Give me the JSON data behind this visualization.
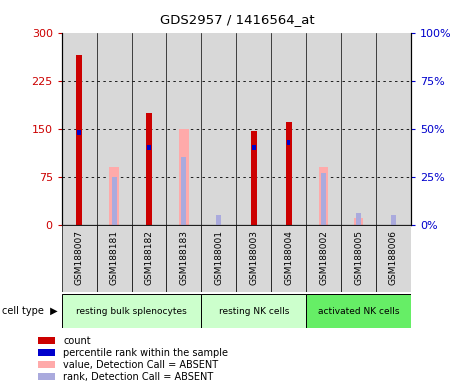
{
  "title": "GDS2957 / 1416564_at",
  "samples": [
    "GSM188007",
    "GSM188181",
    "GSM188182",
    "GSM188183",
    "GSM188001",
    "GSM188003",
    "GSM188004",
    "GSM188002",
    "GSM188005",
    "GSM188006"
  ],
  "count_values": [
    265,
    0,
    175,
    0,
    0,
    147,
    160,
    0,
    0,
    0
  ],
  "percentile_values": [
    48,
    0,
    40,
    0,
    0,
    40,
    43,
    0,
    0,
    0
  ],
  "absent_value_values": [
    0,
    90,
    0,
    150,
    0,
    0,
    0,
    90,
    10,
    0
  ],
  "absent_rank_values": [
    0,
    25,
    0,
    35,
    5,
    0,
    0,
    27,
    6,
    5
  ],
  "cell_groups": [
    {
      "label": "resting bulk splenocytes",
      "start": 0,
      "end": 4,
      "color": "#ccffcc"
    },
    {
      "label": "resting NK cells",
      "start": 4,
      "end": 7,
      "color": "#ccffcc"
    },
    {
      "label": "activated NK cells",
      "start": 7,
      "end": 10,
      "color": "#66ee66"
    }
  ],
  "ylim_left": [
    0,
    300
  ],
  "ylim_right": [
    0,
    100
  ],
  "yticks_left": [
    0,
    75,
    150,
    225,
    300
  ],
  "yticks_right": [
    0,
    25,
    50,
    75,
    100
  ],
  "ytick_labels_left": [
    "0",
    "75",
    "150",
    "225",
    "300"
  ],
  "ytick_labels_right": [
    "0%",
    "25%",
    "50%",
    "75%",
    "100%"
  ],
  "count_color": "#cc0000",
  "percentile_color": "#0000cc",
  "absent_value_color": "#ffaaaa",
  "absent_rank_color": "#aaaadd",
  "bg_color": "#d8d8d8",
  "plot_bg": "#ffffff",
  "legend_items": [
    {
      "label": "count",
      "color": "#cc0000"
    },
    {
      "label": "percentile rank within the sample",
      "color": "#0000cc"
    },
    {
      "label": "value, Detection Call = ABSENT",
      "color": "#ffaaaa"
    },
    {
      "label": "rank, Detection Call = ABSENT",
      "color": "#aaaadd"
    }
  ]
}
